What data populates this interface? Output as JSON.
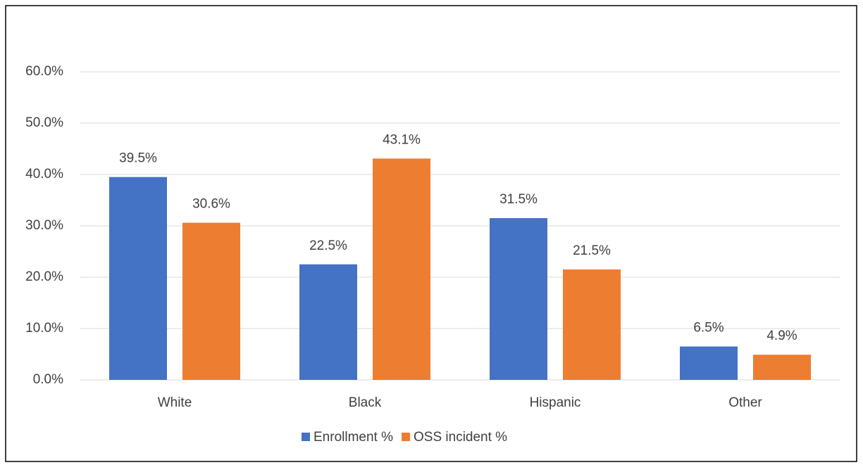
{
  "chart_data": {
    "type": "bar",
    "categories": [
      "White",
      "Black",
      "Hispanic",
      "Other"
    ],
    "series": [
      {
        "name": "Enrollment %",
        "color": "#4472c4",
        "values": [
          39.5,
          22.5,
          31.5,
          6.5
        ],
        "value_labels": [
          "39.5%",
          "22.5%",
          "31.5%",
          "6.5%"
        ]
      },
      {
        "name": "OSS incident %",
        "color": "#ed7d31",
        "values": [
          30.6,
          43.1,
          21.5,
          4.9
        ],
        "value_labels": [
          "30.6%",
          "43.1%",
          "21.5%",
          "4.9%"
        ]
      }
    ],
    "ylim": [
      0,
      60
    ],
    "yticks": [
      {
        "value": 0,
        "label": "0.0%"
      },
      {
        "value": 10,
        "label": "10.0%"
      },
      {
        "value": 20,
        "label": "20.0%"
      },
      {
        "value": 30,
        "label": "30.0%"
      },
      {
        "value": 40,
        "label": "40.0%"
      },
      {
        "value": 50,
        "label": "50.0%"
      },
      {
        "value": 60,
        "label": "60.0%"
      }
    ],
    "grid": true,
    "legend": "bottom"
  }
}
